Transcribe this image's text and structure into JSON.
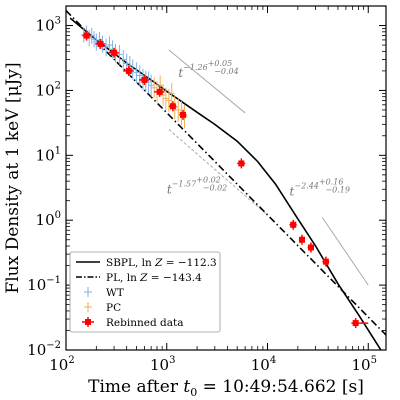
{
  "chart_data": {
    "type": "scatter",
    "xscale": "log",
    "yscale": "log",
    "xlim": [
      100,
      150000
    ],
    "ylim": [
      0.01,
      2000
    ],
    "xlabel_prefix": "Time after ",
    "xlabel_var": "t",
    "xlabel_sub": "0",
    "xlabel_suffix": " = 10:49:54.662 [s]",
    "ylabel": "Flux Density at 1 keV [μJy]",
    "grid": false,
    "legend_position": "bottom-left",
    "x_ticks": [
      {
        "value": 100,
        "base": "10",
        "exp": "2"
      },
      {
        "value": 1000,
        "base": "10",
        "exp": "3"
      },
      {
        "value": 10000,
        "base": "10",
        "exp": "4"
      },
      {
        "value": 100000,
        "base": "10",
        "exp": "5"
      }
    ],
    "y_ticks": [
      {
        "value": 0.01,
        "base": "10",
        "exp": "−2"
      },
      {
        "value": 0.1,
        "base": "10",
        "exp": "−1"
      },
      {
        "value": 1,
        "base": "10",
        "exp": "0"
      },
      {
        "value": 10,
        "base": "10",
        "exp": "1"
      },
      {
        "value": 100,
        "base": "10",
        "exp": "2"
      },
      {
        "value": 1000,
        "base": "10",
        "exp": "3"
      }
    ],
    "series": [
      {
        "name": "SBPL, ln Z = −112.3",
        "kind": "line",
        "style": "solid",
        "color": "#000000",
        "x": [
          110,
          200,
          400,
          700,
          1000,
          2000,
          3000,
          5000,
          8000,
          12000,
          20000,
          30000,
          50000,
          80000,
          150000
        ],
        "y": [
          1300,
          600,
          265,
          145,
          97,
          46,
          30,
          16.5,
          8.0,
          3.6,
          1.05,
          0.4,
          0.105,
          0.035,
          0.0075
        ]
      },
      {
        "name": "PL, ln Z = −143.4",
        "kind": "line",
        "style": "dashdot",
        "color": "#000000",
        "x": [
          100,
          150000
        ],
        "y": [
          1700,
          0.017
        ]
      },
      {
        "name": "WT",
        "kind": "errorbars",
        "color": "#7fb2e6",
        "x": [
          150,
          160,
          170,
          180,
          190,
          200,
          215,
          230,
          250,
          270,
          290,
          310,
          340,
          370,
          400,
          430,
          460,
          500,
          540,
          580,
          620,
          660,
          700
        ],
        "y": [
          720,
          780,
          650,
          700,
          620,
          560,
          600,
          520,
          470,
          500,
          430,
          380,
          360,
          300,
          260,
          240,
          210,
          190,
          170,
          150,
          140,
          135,
          120
        ],
        "ylow": [
          550,
          600,
          480,
          520,
          460,
          410,
          440,
          380,
          340,
          360,
          310,
          270,
          250,
          210,
          180,
          165,
          145,
          130,
          115,
          100,
          95,
          90,
          80
        ],
        "yhigh": [
          940,
          1000,
          860,
          920,
          820,
          750,
          800,
          700,
          630,
          680,
          590,
          520,
          500,
          420,
          370,
          340,
          300,
          270,
          245,
          215,
          200,
          195,
          175
        ]
      },
      {
        "name": "PC",
        "kind": "errorbars",
        "color": "#f0b050",
        "x": [
          750,
          800,
          860,
          920,
          980,
          1050,
          1120,
          1200,
          1300,
          1400,
          1500
        ],
        "y": [
          110,
          95,
          120,
          85,
          75,
          70,
          90,
          55,
          50,
          45,
          40
        ],
        "ylow": [
          75,
          65,
          85,
          58,
          50,
          47,
          60,
          36,
          33,
          29,
          26
        ],
        "yhigh": [
          160,
          140,
          170,
          125,
          110,
          105,
          130,
          82,
          75,
          68,
          60
        ]
      },
      {
        "name": "Rebinned data",
        "kind": "points",
        "color": "#ff0000",
        "x": [
          160,
          220,
          300,
          420,
          600,
          850,
          1150,
          1450,
          5500,
          18000,
          22000,
          27000,
          38000,
          75000
        ],
        "y": [
          700,
          520,
          380,
          200,
          145,
          95,
          57,
          42,
          7.5,
          0.85,
          0.5,
          0.38,
          0.23,
          0.026
        ],
        "xlow": [
          145,
          195,
          265,
          370,
          530,
          750,
          1050,
          1330,
          5000,
          16500,
          20500,
          25000,
          35000,
          68000
        ],
        "xhigh": [
          175,
          245,
          335,
          470,
          670,
          950,
          1250,
          1570,
          6000,
          19500,
          23500,
          29000,
          41000,
          100000
        ]
      }
    ],
    "annotations": [
      {
        "name": "slope-1-annotation",
        "text": "t",
        "sup": "−1.26",
        "sup_hi": "+0.05",
        "sup_lo": "−0.04",
        "at": [
          2600,
          160
        ]
      },
      {
        "name": "slope-2-annotation",
        "text": "t",
        "sup": "−1.57",
        "sup_hi": "+0.02",
        "sup_lo": "−0.02",
        "at": [
          2000,
          2.6
        ]
      },
      {
        "name": "slope-3-annotation",
        "text": "t",
        "sup": "−2.44",
        "sup_hi": "+0.16",
        "sup_lo": "−0.19",
        "at": [
          33000,
          2.4
        ]
      }
    ],
    "guide_lines": [
      {
        "x": [
          1050,
          6000
        ],
        "y": [
          420,
          45
        ],
        "style": "solid",
        "color": "#aaaaaa"
      },
      {
        "x": [
          1050,
          10000
        ],
        "y": [
          25,
          1.2
        ],
        "style": "dashed",
        "color": "#aaaaaa"
      },
      {
        "x": [
          35000,
          100000
        ],
        "y": [
          1.1,
          0.1
        ],
        "style": "solid",
        "color": "#aaaaaa"
      }
    ],
    "legend": {
      "entries": [
        {
          "label": "SBPL, ln Z = −112.3",
          "label_pre": "SBPL, ln ",
          "label_var": "Z",
          "label_post": " = −112.3",
          "marker": "line-solid",
          "color": "#000000"
        },
        {
          "label": "PL, ln Z = −143.4",
          "label_pre": "PL, ln ",
          "label_var": "Z",
          "label_post": " = −143.4",
          "marker": "line-dashdot",
          "color": "#000000"
        },
        {
          "label": "WT",
          "label_pre": "WT",
          "label_var": "",
          "label_post": "",
          "marker": "cross",
          "color": "#7fb2e6"
        },
        {
          "label": "PC",
          "label_pre": "PC",
          "label_var": "",
          "label_post": "",
          "marker": "cross",
          "color": "#f0b050"
        },
        {
          "label": "Rebinned data",
          "label_pre": "Rebinned data",
          "label_var": "",
          "label_post": "",
          "marker": "square-error",
          "color": "#ff0000"
        }
      ]
    }
  }
}
